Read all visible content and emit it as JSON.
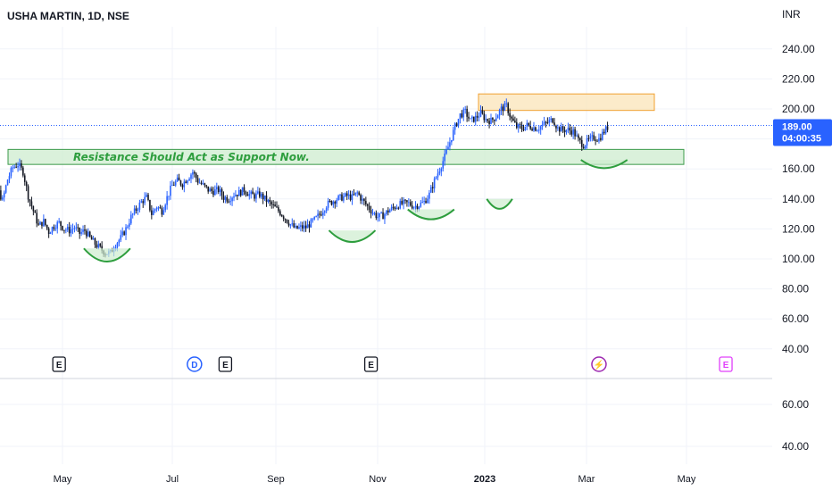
{
  "chart_data": {
    "type": "candlestick",
    "title": "USHA MARTIN, 1D, NSE",
    "currency": "INR",
    "price_axis_ticks": [
      "240.00",
      "220.00",
      "200.00",
      "180.00",
      "160.00",
      "140.00",
      "120.00",
      "100.00",
      "80.00",
      "60.00",
      "40.00"
    ],
    "lower_pane_ticks": [
      "60.00",
      "40.00"
    ],
    "time_labels": [
      "May",
      "Jul",
      "Sep",
      "Nov",
      "2023",
      "Mar",
      "May"
    ],
    "ylim": [
      30,
      255
    ],
    "last_price": {
      "label": "189.00",
      "countdown": "04:00:35",
      "value": 189
    },
    "resistance_zone": {
      "from": 163,
      "to": 173,
      "text": "Resistance Should Act as Support Now."
    },
    "top_zone": {
      "from": 199,
      "to": 210
    },
    "curves": [
      {
        "x_day": 26,
        "y_low": 99,
        "y_high": 107
      },
      {
        "x_day": 169,
        "y_low": 112,
        "y_high": 119
      },
      {
        "x_day": 215,
        "y_low": 127,
        "y_high": 133
      },
      {
        "x_day": 255,
        "y_low": 134,
        "y_high": 140
      },
      {
        "x_day": 316,
        "y_low": 161,
        "y_high": 166
      }
    ],
    "events": [
      {
        "x_day": -2,
        "label": "E",
        "kind": "earnings"
      },
      {
        "x_day": 77,
        "label": "D",
        "kind": "dividend"
      },
      {
        "x_day": 95,
        "label": "E",
        "kind": "earnings"
      },
      {
        "x_day": 180,
        "label": "E",
        "kind": "earnings"
      },
      {
        "x_day": 313,
        "label": "⚡",
        "kind": "split"
      },
      {
        "x_day": 387,
        "label": "E",
        "kind": "earnings-future"
      }
    ],
    "close_path": [
      [
        -50,
        112
      ],
      [
        -47,
        127
      ],
      [
        -44,
        140
      ],
      [
        -41,
        150
      ],
      [
        -38,
        147
      ],
      [
        -35,
        139
      ],
      [
        -32,
        153
      ],
      [
        -29,
        161
      ],
      [
        -26,
        163
      ],
      [
        -23,
        158
      ],
      [
        -20,
        142
      ],
      [
        -17,
        132
      ],
      [
        -14,
        122
      ],
      [
        -11,
        125
      ],
      [
        -8,
        118
      ],
      [
        -5,
        122
      ],
      [
        -2,
        124
      ],
      [
        1,
        120
      ],
      [
        4,
        119
      ],
      [
        7,
        121
      ],
      [
        10,
        117
      ],
      [
        13,
        119
      ],
      [
        16,
        114
      ],
      [
        19,
        110
      ],
      [
        22,
        107
      ],
      [
        25,
        104
      ],
      [
        28,
        104
      ],
      [
        31,
        110
      ],
      [
        34,
        114
      ],
      [
        37,
        120
      ],
      [
        40,
        128
      ],
      [
        43,
        133
      ],
      [
        46,
        138
      ],
      [
        49,
        141
      ],
      [
        52,
        130
      ],
      [
        55,
        135
      ],
      [
        58,
        132
      ],
      [
        61,
        141
      ],
      [
        64,
        149
      ],
      [
        67,
        152
      ],
      [
        70,
        150
      ],
      [
        73,
        154
      ],
      [
        76,
        158
      ],
      [
        79,
        152
      ],
      [
        82,
        149
      ],
      [
        85,
        146
      ],
      [
        88,
        145
      ],
      [
        91,
        146
      ],
      [
        94,
        141
      ],
      [
        97,
        140
      ],
      [
        100,
        143
      ],
      [
        103,
        144
      ],
      [
        106,
        146
      ],
      [
        109,
        143
      ],
      [
        112,
        142
      ],
      [
        115,
        143
      ],
      [
        118,
        140
      ],
      [
        121,
        137
      ],
      [
        124,
        134
      ],
      [
        127,
        131
      ],
      [
        130,
        127
      ],
      [
        133,
        123
      ],
      [
        136,
        120
      ],
      [
        139,
        121
      ],
      [
        142,
        121
      ],
      [
        145,
        124
      ],
      [
        148,
        127
      ],
      [
        151,
        131
      ],
      [
        154,
        136
      ],
      [
        157,
        138
      ],
      [
        160,
        140
      ],
      [
        163,
        141
      ],
      [
        166,
        142
      ],
      [
        169,
        141
      ],
      [
        172,
        144
      ],
      [
        175,
        139
      ],
      [
        178,
        135
      ],
      [
        181,
        131
      ],
      [
        184,
        128
      ],
      [
        187,
        129
      ],
      [
        190,
        132
      ],
      [
        193,
        134
      ],
      [
        196,
        136
      ],
      [
        199,
        137
      ],
      [
        202,
        137
      ],
      [
        205,
        135
      ],
      [
        208,
        136
      ],
      [
        211,
        138
      ],
      [
        214,
        143
      ],
      [
        217,
        152
      ],
      [
        220,
        160
      ],
      [
        223,
        168
      ],
      [
        226,
        178
      ],
      [
        229,
        188
      ],
      [
        232,
        196
      ],
      [
        235,
        198
      ],
      [
        238,
        192
      ],
      [
        241,
        194
      ],
      [
        244,
        197
      ],
      [
        247,
        193
      ],
      [
        250,
        192
      ],
      [
        253,
        195
      ],
      [
        256,
        200
      ],
      [
        259,
        202
      ],
      [
        262,
        193
      ],
      [
        265,
        188
      ],
      [
        268,
        187
      ],
      [
        271,
        189
      ],
      [
        274,
        188
      ],
      [
        277,
        187
      ],
      [
        280,
        189
      ],
      [
        283,
        191
      ],
      [
        286,
        193
      ],
      [
        289,
        187
      ],
      [
        292,
        186
      ],
      [
        295,
        186
      ],
      [
        298,
        185
      ],
      [
        301,
        179
      ],
      [
        304,
        176
      ],
      [
        307,
        179
      ],
      [
        310,
        181
      ],
      [
        313,
        180
      ],
      [
        316,
        185
      ],
      [
        319,
        189
      ]
    ]
  }
}
